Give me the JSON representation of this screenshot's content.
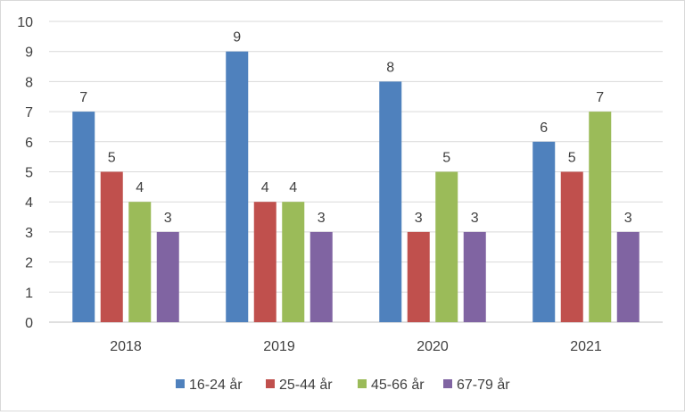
{
  "chart_data": {
    "type": "bar",
    "title": "",
    "xlabel": "",
    "ylabel": "",
    "categories": [
      "2018",
      "2019",
      "2020",
      "2021"
    ],
    "ylim": [
      0,
      10
    ],
    "yticks": [
      0,
      1,
      2,
      3,
      4,
      5,
      6,
      7,
      8,
      9,
      10
    ],
    "grid": true,
    "legend_position": "bottom",
    "data_labels": true,
    "series": [
      {
        "name": "16-24 år",
        "color": "#4f81bd",
        "values": [
          7,
          9,
          8,
          6
        ]
      },
      {
        "name": "25-44 år",
        "color": "#c0504d",
        "values": [
          5,
          4,
          3,
          5
        ]
      },
      {
        "name": "45-66 år",
        "color": "#9bbb59",
        "values": [
          4,
          4,
          5,
          7
        ]
      },
      {
        "name": "67-79 år",
        "color": "#8064a2",
        "values": [
          3,
          3,
          3,
          3
        ]
      }
    ]
  }
}
